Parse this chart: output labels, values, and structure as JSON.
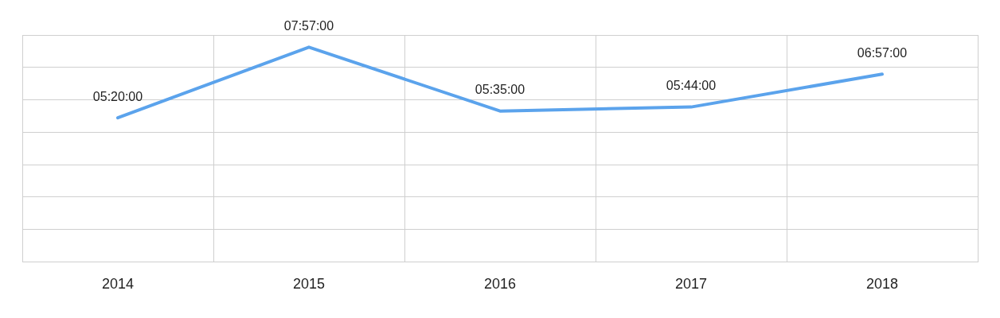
{
  "chart_data": {
    "type": "line",
    "categories": [
      "2014",
      "2015",
      "2016",
      "2017",
      "2018"
    ],
    "series": [
      {
        "color": "#5ba3ec",
        "values": [
          5.3333,
          7.95,
          5.5833,
          5.7333,
          6.95
        ],
        "value_labels": [
          "05:20:00",
          "07:57:00",
          "05:35:00",
          "05:44:00",
          "06:57:00"
        ]
      }
    ],
    "ylim": [
      0,
      8.4
    ],
    "yticks": [
      {
        "value": 0,
        "label": null
      },
      {
        "value": 1.2,
        "label": null
      },
      {
        "value": 2.4,
        "label": null
      },
      {
        "value": 3.6,
        "label": null
      },
      {
        "value": 4.8,
        "label": null
      },
      {
        "value": 6,
        "label": null
      },
      {
        "value": 7.2,
        "label": null
      },
      {
        "value": 8.4,
        "label": null
      }
    ],
    "tick_labels": "x",
    "grid": true,
    "legend": false,
    "marker": "none",
    "line_style": "solid"
  }
}
